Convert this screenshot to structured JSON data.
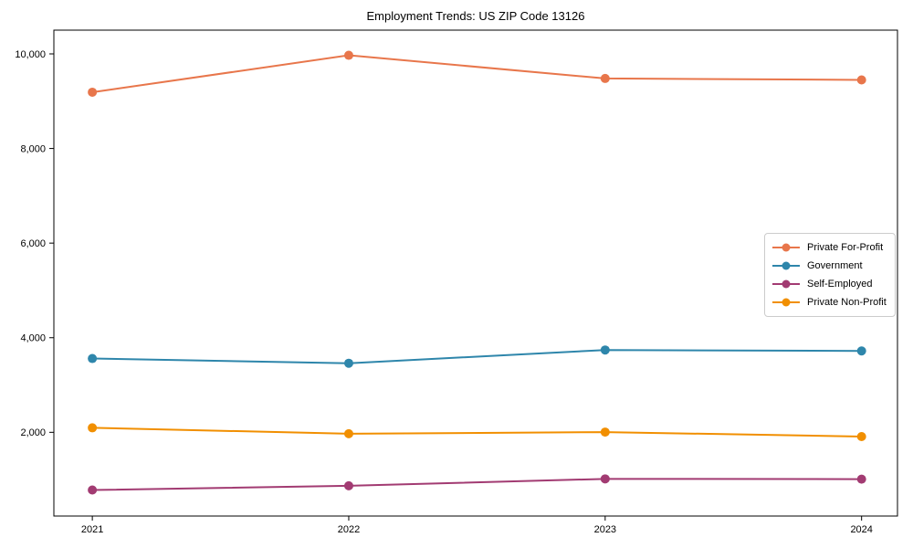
{
  "chart_data": {
    "type": "line",
    "title": "Employment Trends: US ZIP Code 13126",
    "xlabel": "",
    "ylabel": "",
    "x": [
      2021,
      2022,
      2023,
      2024
    ],
    "xtick_labels": [
      "2021",
      "2022",
      "2023",
      "2024"
    ],
    "yticks": [
      2000,
      4000,
      6000,
      8000,
      10000
    ],
    "ytick_labels": [
      "2,000",
      "4,000",
      "6,000",
      "8,000",
      "10,000"
    ],
    "xlim": [
      2020.85,
      2024.14
    ],
    "ylim": [
      230,
      10502
    ],
    "grid": false,
    "legend_position": "right-middle",
    "axis_color": "#000000",
    "background_color": "#ffffff",
    "legend_border_color": "#cccccc",
    "series": [
      {
        "name": "Private For-Profit",
        "color": "#E8764B",
        "values": [
          9190,
          9970,
          9480,
          9450
        ]
      },
      {
        "name": "Government",
        "color": "#2E86AB",
        "values": [
          3560,
          3460,
          3740,
          3720
        ]
      },
      {
        "name": "Self-Employed",
        "color": "#A23B72",
        "values": [
          780,
          870,
          1015,
          1010
        ]
      },
      {
        "name": "Private Non-Profit",
        "color": "#F18F01",
        "values": [
          2095,
          1970,
          2005,
          1910
        ]
      }
    ]
  }
}
